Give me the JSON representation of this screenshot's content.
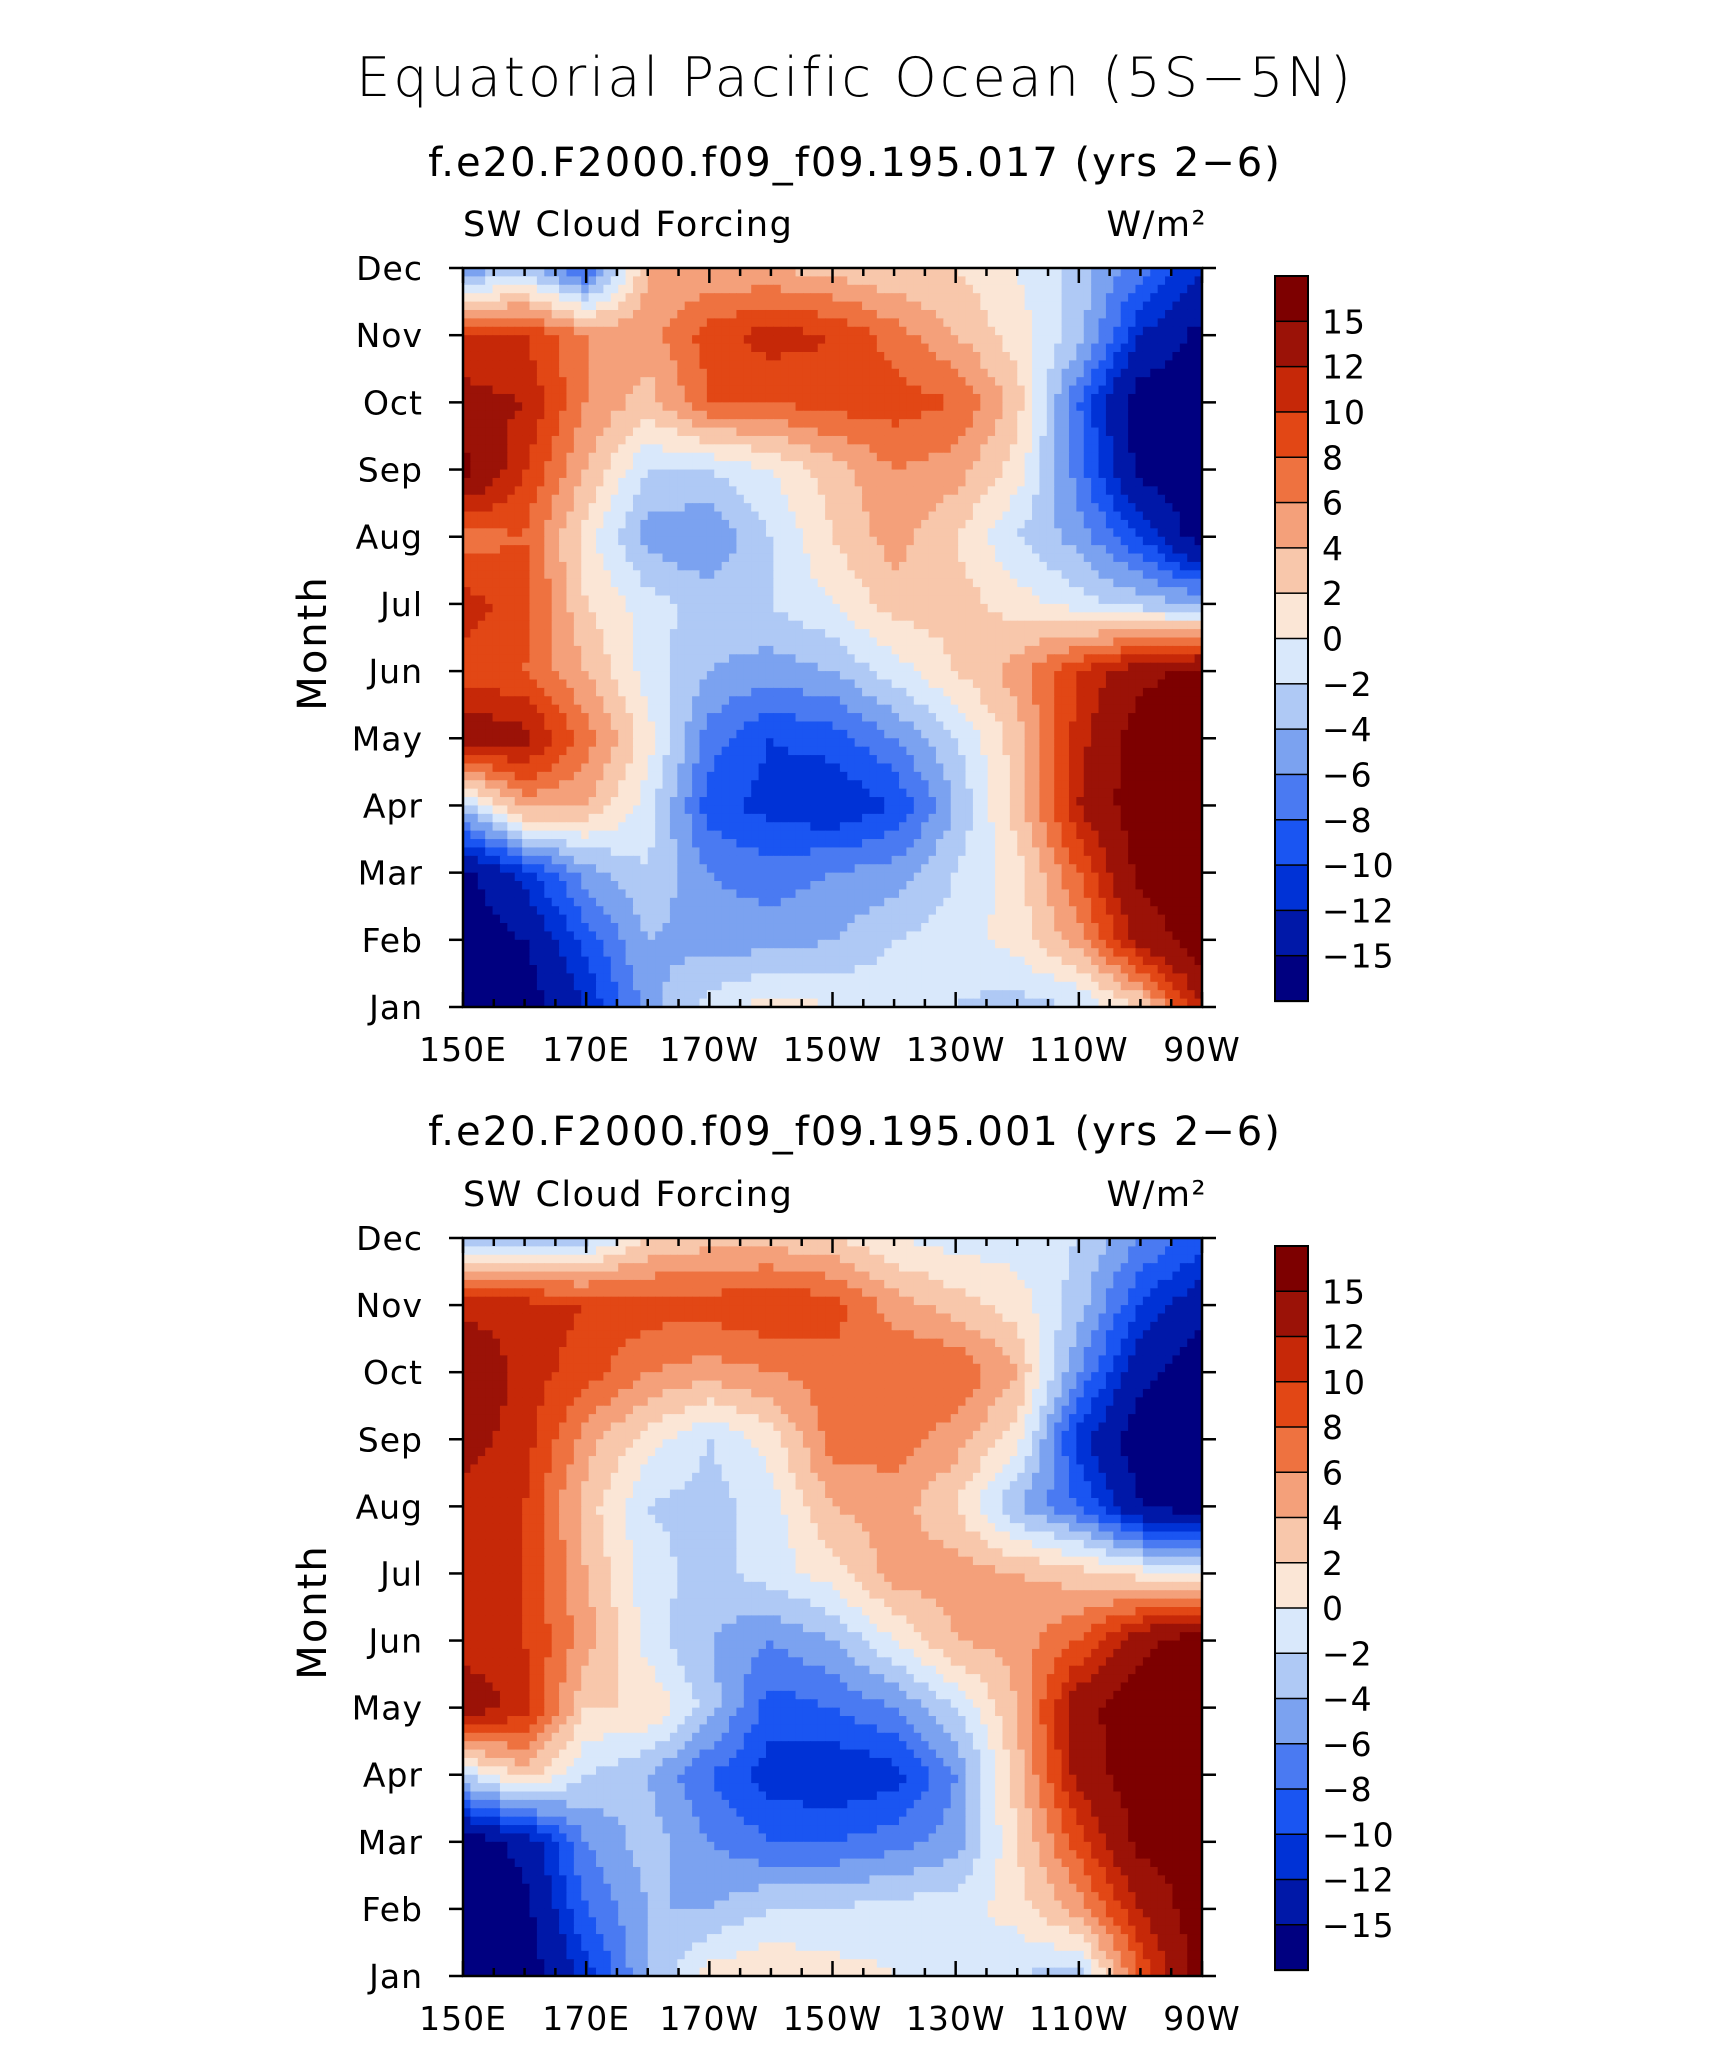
{
  "page": {
    "title": "Equatorial Pacific Ocean (5S−5N)"
  },
  "chart_data": [
    {
      "type": "heatmap",
      "title": "f.e20.F2000.f09_f09.195.017 (yrs 2−6)",
      "left_label": "SW Cloud Forcing",
      "right_label": "W/m²",
      "ylabel": "Month",
      "xlabel": "",
      "x_tick_labels": [
        "150E",
        "170E",
        "170W",
        "150W",
        "130W",
        "110W",
        "90W"
      ],
      "y_tick_labels": [
        "Jan",
        "Feb",
        "Mar",
        "Apr",
        "May",
        "Jun",
        "Jul",
        "Aug",
        "Sep",
        "Oct",
        "Nov",
        "Dec"
      ],
      "x_longitudes": [
        150,
        160,
        170,
        180,
        190,
        200,
        210,
        220,
        230,
        240,
        250,
        260,
        270
      ],
      "months": [
        "Jan",
        "Feb",
        "Mar",
        "Apr",
        "May",
        "Jun",
        "Jul",
        "Aug",
        "Sep",
        "Oct",
        "Nov",
        "Dec"
      ],
      "values": [
        [
          -17,
          -17,
          -12,
          -5,
          -1,
          1,
          0,
          -1,
          -2,
          -3,
          -2,
          2,
          12
        ],
        [
          -17,
          -15,
          -9,
          -4,
          -5,
          -5,
          -4,
          -2,
          -1,
          1,
          5,
          13,
          17
        ],
        [
          -16,
          -11,
          -5,
          -2,
          -6,
          -7,
          -6,
          -5,
          -2,
          1,
          8,
          16,
          17
        ],
        [
          -3,
          5,
          4,
          -1,
          -9,
          -11,
          -12,
          -10,
          -4,
          3,
          12,
          17,
          17
        ],
        [
          14,
          13,
          7,
          1,
          -7,
          -10,
          -9,
          -6,
          -2,
          3,
          11,
          17,
          17
        ],
        [
          9,
          8,
          4,
          -1,
          -4,
          -5,
          -4,
          -1,
          2,
          5,
          10,
          14,
          16
        ],
        [
          11,
          9,
          2,
          -1,
          -3,
          -2,
          0,
          3,
          3,
          1,
          -1,
          -3,
          -4
        ],
        [
          7,
          8,
          1,
          -5,
          -6,
          -2,
          2,
          5,
          2,
          -2,
          -5,
          -10,
          -17
        ],
        [
          16,
          10,
          4,
          -2,
          -2,
          0,
          3,
          6,
          5,
          1,
          -7,
          -16,
          -17
        ],
        [
          13,
          12,
          6,
          3,
          8,
          8,
          9,
          9,
          8,
          3,
          -8,
          -17,
          -17
        ],
        [
          10,
          10,
          6,
          5,
          9,
          11,
          10,
          7,
          4,
          1,
          -3,
          -12,
          -16
        ],
        [
          -6,
          -3,
          -9,
          4,
          4,
          4,
          3,
          2,
          2,
          0,
          -3,
          -7,
          -12
        ]
      ],
      "contour_levels": [
        -15,
        -12,
        -10,
        -8,
        -6,
        -4,
        -2,
        0,
        2,
        4,
        6,
        8,
        10,
        12,
        15
      ],
      "colorbar_labels": [
        "15",
        "12",
        "10",
        "8",
        "6",
        "4",
        "2",
        "0",
        "−2",
        "−4",
        "−6",
        "−8",
        "−10",
        "−12",
        "−15"
      ],
      "colors": [
        "#000080",
        "#0018a8",
        "#0032d6",
        "#1a55f2",
        "#4a7af2",
        "#7ba2f0",
        "#afc9f5",
        "#d9e8fb",
        "#fbe6d6",
        "#f8c7ab",
        "#f4a07a",
        "#ee7240",
        "#e24715",
        "#c62808",
        "#9b1207",
        "#7d0000"
      ]
    },
    {
      "type": "heatmap",
      "title": "f.e20.F2000.f09_f09.195.001 (yrs 2−6)",
      "left_label": "SW Cloud Forcing",
      "right_label": "W/m²",
      "ylabel": "Month",
      "xlabel": "",
      "x_tick_labels": [
        "150E",
        "170E",
        "170W",
        "150W",
        "130W",
        "110W",
        "90W"
      ],
      "y_tick_labels": [
        "Jan",
        "Feb",
        "Mar",
        "Apr",
        "May",
        "Jun",
        "Jul",
        "Aug",
        "Sep",
        "Oct",
        "Nov",
        "Dec"
      ],
      "x_longitudes": [
        150,
        160,
        170,
        180,
        190,
        200,
        210,
        220,
        230,
        240,
        250,
        260,
        270
      ],
      "months": [
        "Jan",
        "Feb",
        "Mar",
        "Apr",
        "May",
        "Jun",
        "Jul",
        "Aug",
        "Sep",
        "Oct",
        "Nov",
        "Dec"
      ],
      "values": [
        [
          -17,
          -17,
          -11,
          -4,
          1,
          2,
          1,
          0,
          -1,
          -2,
          -3,
          8,
          17
        ],
        [
          -17,
          -16,
          -8,
          -4,
          -4,
          -2,
          -2,
          -1,
          -1,
          1,
          5,
          12,
          17
        ],
        [
          -17,
          -14,
          -6,
          -3,
          -6,
          -8,
          -8,
          -7,
          -5,
          2,
          9,
          16,
          17
        ],
        [
          -2,
          3,
          -2,
          -4,
          -8,
          -11,
          -12,
          -11,
          -6,
          3,
          13,
          17,
          17
        ],
        [
          14,
          11,
          2,
          2,
          -3,
          -9,
          -8,
          -6,
          -2,
          4,
          14,
          17,
          17
        ],
        [
          11,
          10,
          5,
          -1,
          -4,
          -6,
          -4,
          0,
          4,
          5,
          8,
          14,
          17
        ],
        [
          12,
          10,
          4,
          -1,
          -3,
          -1,
          1,
          5,
          5,
          4,
          3,
          1,
          -1
        ],
        [
          11,
          10,
          3,
          -2,
          -3,
          -1,
          4,
          5,
          2,
          -4,
          -8,
          -15,
          -17
        ],
        [
          13,
          11,
          5,
          1,
          -2,
          1,
          7,
          7,
          5,
          1,
          -11,
          -17,
          -17
        ],
        [
          15,
          11,
          9,
          6,
          5,
          6,
          7,
          8,
          8,
          4,
          -6,
          -14,
          -17
        ],
        [
          11,
          11,
          10,
          9,
          9,
          10,
          9,
          5,
          3,
          1,
          -3,
          -10,
          -14
        ],
        [
          -5,
          -4,
          -3,
          2,
          3,
          3,
          2,
          0,
          -1,
          -1,
          -2,
          -6,
          -9
        ]
      ],
      "contour_levels": [
        -15,
        -12,
        -10,
        -8,
        -6,
        -4,
        -2,
        0,
        2,
        4,
        6,
        8,
        10,
        12,
        15
      ],
      "colorbar_labels": [
        "15",
        "12",
        "10",
        "8",
        "6",
        "4",
        "2",
        "0",
        "−2",
        "−4",
        "−6",
        "−8",
        "−10",
        "−12",
        "−15"
      ],
      "colors": [
        "#000080",
        "#0018a8",
        "#0032d6",
        "#1a55f2",
        "#4a7af2",
        "#7ba2f0",
        "#afc9f5",
        "#d9e8fb",
        "#fbe6d6",
        "#f8c7ab",
        "#f4a07a",
        "#ee7240",
        "#e24715",
        "#c62808",
        "#9b1207",
        "#7d0000"
      ]
    }
  ]
}
